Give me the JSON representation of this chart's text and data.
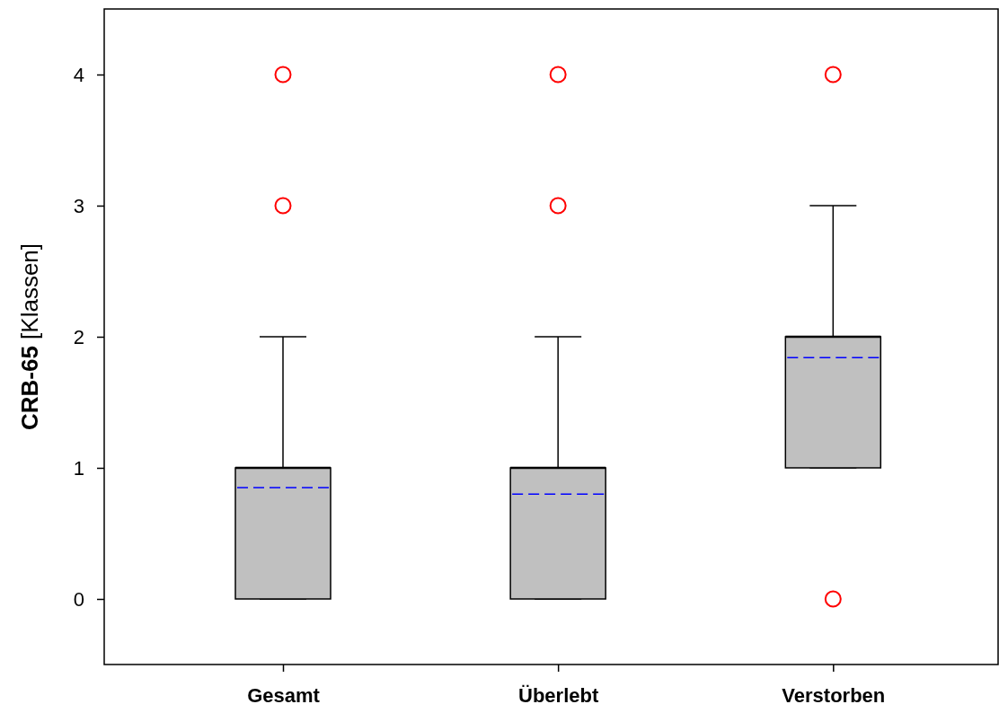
{
  "chart_data": {
    "type": "box",
    "ylabel": "CRB-65 [Klassen]",
    "categories": [
      "Gesamt",
      "Überlebt",
      "Verstorben"
    ],
    "boxes": [
      {
        "low": 0,
        "q1": 0,
        "median": 1,
        "q3": 1,
        "high": 2,
        "mean": 0.85,
        "outliers": [
          3,
          4
        ]
      },
      {
        "low": 0,
        "q1": 0,
        "median": 1,
        "q3": 1,
        "high": 2,
        "mean": 0.8,
        "outliers": [
          3,
          4
        ]
      },
      {
        "low": 1,
        "q1": 1,
        "median": 2,
        "q3": 2,
        "high": 3,
        "mean": 1.84,
        "outliers": [
          0,
          4
        ]
      }
    ],
    "color": "#c0c0c0",
    "ylim": [
      -0.5,
      4.5
    ],
    "yticks": [
      0,
      1,
      2,
      3,
      4
    ],
    "grid": false
  }
}
